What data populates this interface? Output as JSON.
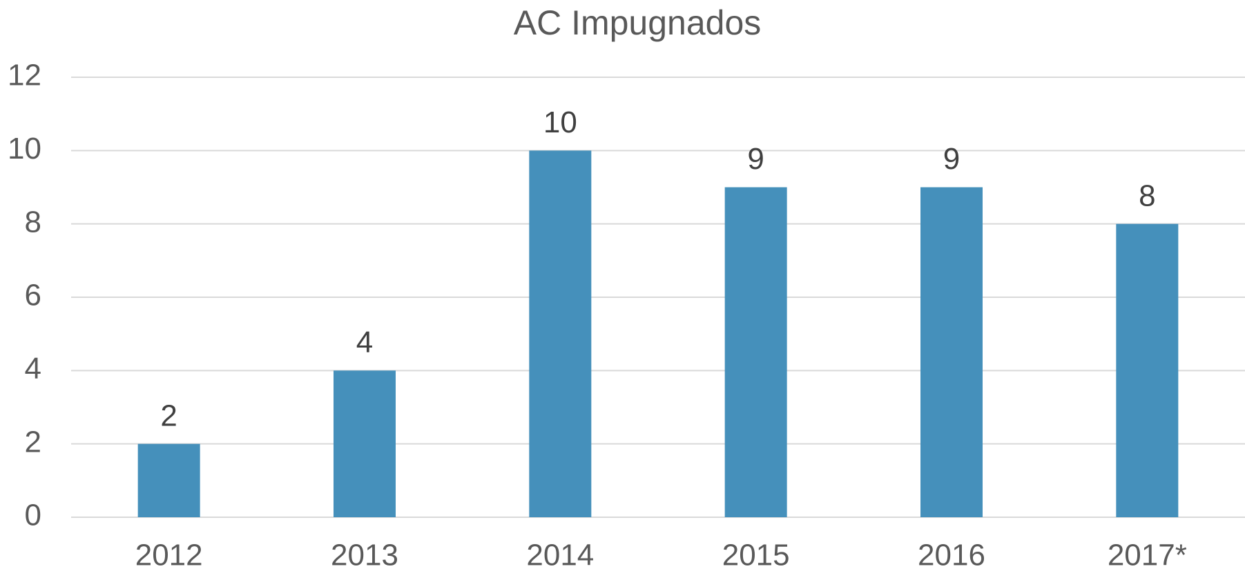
{
  "chart_data": {
    "type": "bar",
    "title": "AC Impugnados",
    "categories": [
      "2012",
      "2013",
      "2014",
      "2015",
      "2016",
      "2017*"
    ],
    "values": [
      2,
      4,
      10,
      9,
      9,
      8
    ],
    "color": "#4590bb",
    "ylim": [
      0,
      12
    ],
    "yticks": [
      0,
      2,
      4,
      6,
      8,
      10,
      12
    ],
    "grid": true
  }
}
